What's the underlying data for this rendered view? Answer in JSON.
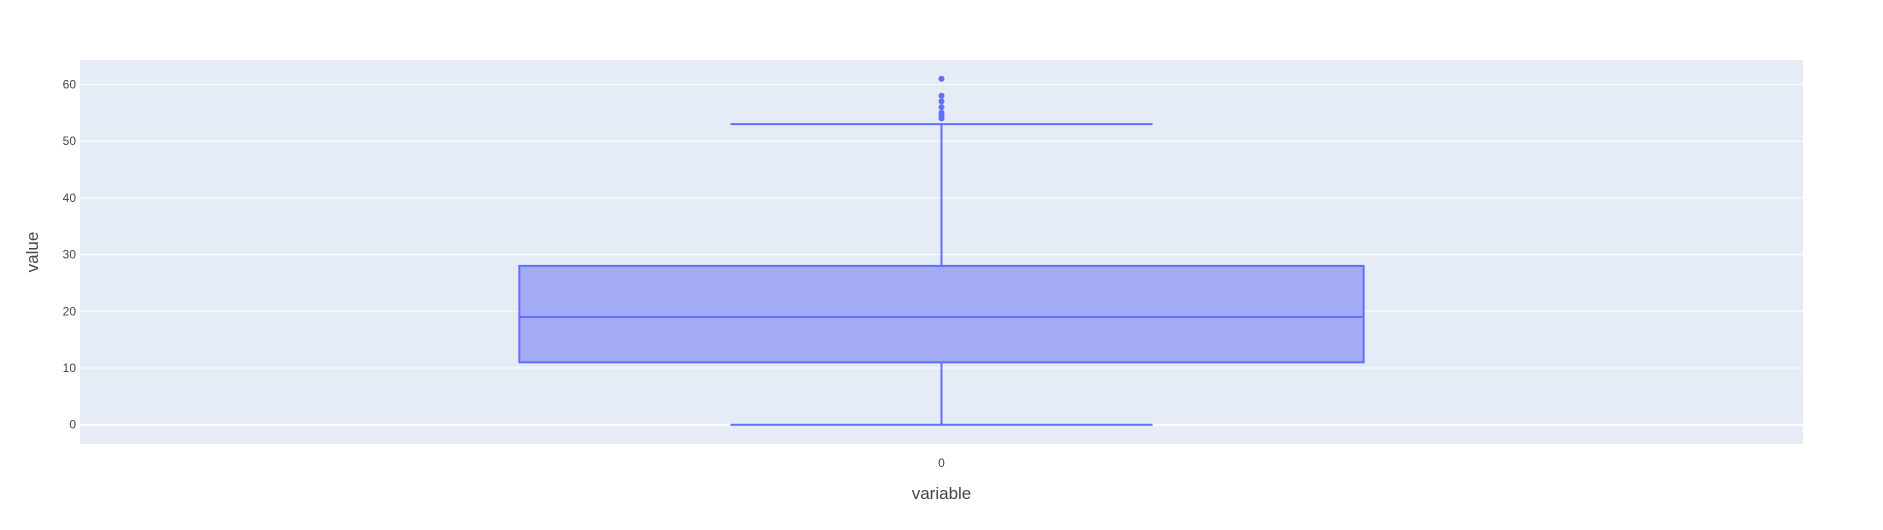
{
  "chart_data": {
    "type": "box",
    "title": "",
    "xlabel": "variable",
    "ylabel": "value",
    "categories": [
      "0"
    ],
    "ylim": [
      -3.4,
      64.3
    ],
    "y_ticks": [
      0,
      10,
      20,
      30,
      40,
      50,
      60
    ],
    "grid": true,
    "series": [
      {
        "category": "0",
        "min": 0,
        "q1": 11,
        "median": 19,
        "q3": 28,
        "max": 53,
        "outliers": [
          54,
          54.5,
          55,
          56,
          57,
          58,
          61
        ]
      }
    ],
    "colors": {
      "plot_bg": "#e5ecf6",
      "grid": "#ffffff",
      "box_fill": "#a3abf7",
      "box_line": "#636efa",
      "text": "#444444"
    }
  }
}
